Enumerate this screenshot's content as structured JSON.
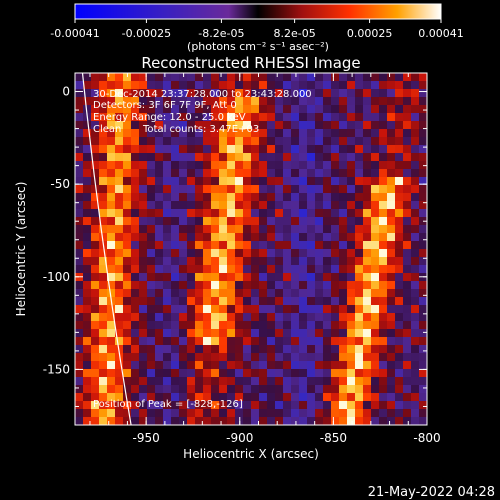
{
  "chart_data": {
    "type": "heatmap",
    "title": "Reconstructed RHESSI Image",
    "xlabel": "Heliocentric X (arcsec)",
    "ylabel": "Heliocentric Y (arcsec)",
    "xlim": [
      -988,
      -800
    ],
    "ylim": [
      -180,
      10
    ],
    "xticks": [
      "-950",
      "-900",
      "-850",
      "-800"
    ],
    "yticks": [
      "0",
      "-50",
      "-100",
      "-150"
    ],
    "colorbar": {
      "ticks": [
        "-0.00041",
        "-0.00025",
        "-8.2e-05",
        "8.2e-05",
        "0.00025",
        "0.00041"
      ],
      "range": [
        -0.00041,
        0.00041
      ],
      "label": "(photons cm⁻² s⁻¹ asec⁻²)"
    },
    "annotations": [
      "30-Dec-2014 23:37:28.000 to 23:43:28.000",
      "Detectors: 3F 6F 7F 9F, Att 0",
      "Energy Range: 12.0 - 25.0 keV",
      "Clean",
      "Total counts: 3.47E+03"
    ],
    "peak_label": "Position of Peak = [-828,-126]",
    "peak": [
      -828,
      -126
    ],
    "limb_color": "#ffffff"
  },
  "footer": {
    "timestamp": "21-May-2022 04:28"
  }
}
